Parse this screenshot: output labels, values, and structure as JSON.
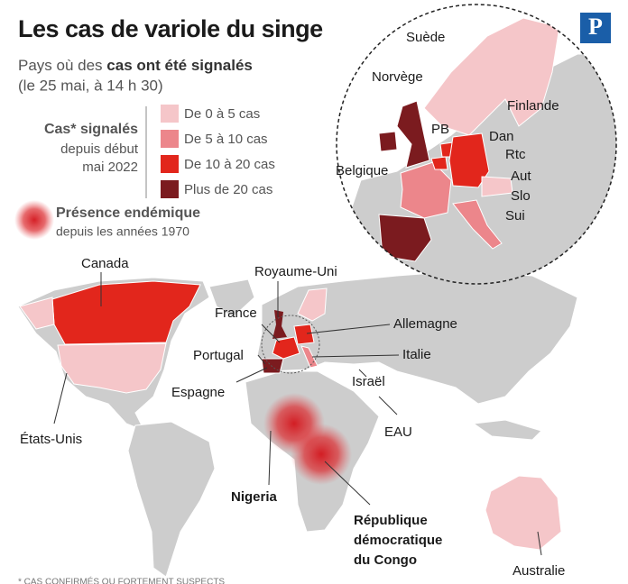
{
  "header": {
    "title": "Les cas de variole du singe",
    "subtitle_start": "Pays où des ",
    "subtitle_bold": "cas ont été signalés",
    "subtitle_date": "(le 25 mai, à 14 h 30)",
    "logo": "P"
  },
  "legend": {
    "title": "Cas* signalés",
    "subtitle": [
      "depuis début",
      "mai 2022"
    ],
    "items": [
      {
        "label": "De 0 à 5 cas",
        "color": "#f5c6c9"
      },
      {
        "label": "De 5 à 10 cas",
        "color": "#ec868b"
      },
      {
        "label": "De 10 à 20 cas",
        "color": "#e2261c"
      },
      {
        "label": "Plus de 20 cas",
        "color": "#7b1b1f"
      }
    ]
  },
  "endemic": {
    "title": "Présence endémique",
    "subtitle": "depuis les années 1970"
  },
  "map_labels": {
    "canada": "Canada",
    "royaume_uni": "Royaume-Uni",
    "france": "France",
    "allemagne": "Allemagne",
    "portugal": "Portugal",
    "italie": "Italie",
    "espagne": "Espagne",
    "israel": "Israël",
    "eau": "EAU",
    "etats_unis": "États-Unis",
    "nigeria": "Nigeria",
    "rdc": [
      "République",
      "démocratique",
      "du Congo"
    ],
    "australie": "Australie"
  },
  "inset_labels": {
    "suede": "Suède",
    "norvege": "Norvège",
    "finlande": "Finlande",
    "pb": "PB",
    "dan": "Dan",
    "belgique": "Belgique",
    "rtc": "Rtc",
    "aut": "Aut",
    "slo": "Slo",
    "sui": "Sui"
  },
  "footnote": "* CAS CONFIRMÉS OU FORTEMENT SUSPECTS"
}
